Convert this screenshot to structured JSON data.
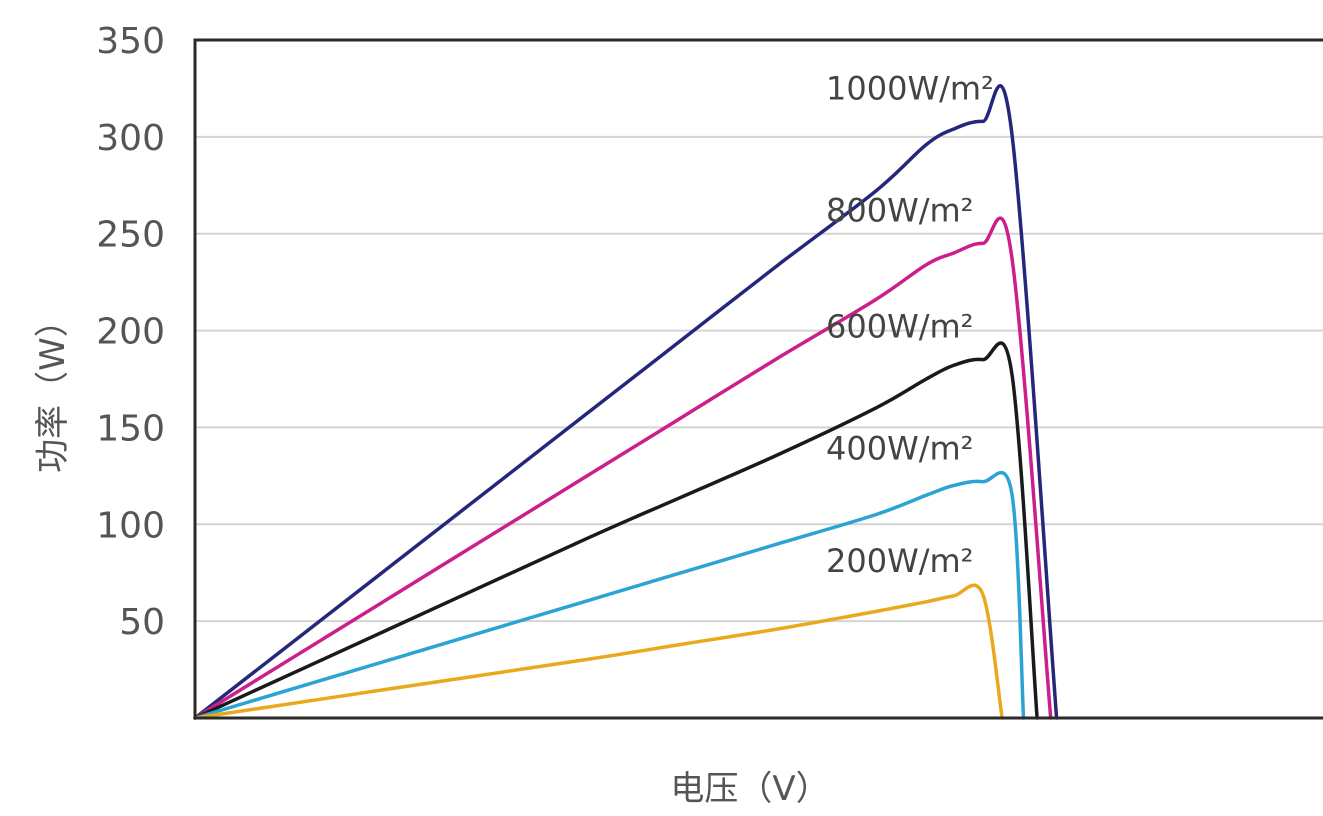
{
  "chart_data": {
    "type": "line",
    "title": "",
    "xlabel": "电压（V）",
    "ylabel": "功率（W）",
    "ylim": [
      0,
      350
    ],
    "y_ticks": [
      "50",
      "100",
      "150",
      "200",
      "250",
      "300",
      "350"
    ],
    "grid": "horizontal",
    "series": [
      {
        "name": "1000W/m²",
        "color": "#24277a",
        "x": [
          0,
          10,
          20,
          25,
          30,
          35,
          37.6,
          39,
          40.5,
          42,
          44.3
        ],
        "values": [
          0,
          78,
          156,
          195,
          234,
          272,
          296,
          304,
          308,
          302,
          0
        ]
      },
      {
        "name": "800W/m²",
        "color": "#cc1e8c",
        "x": [
          0,
          10,
          20,
          25,
          30,
          35,
          37.6,
          39,
          40.5,
          42,
          44
        ],
        "values": [
          0,
          62,
          124,
          155,
          186,
          216,
          234,
          240,
          245,
          238,
          0
        ]
      },
      {
        "name": "600W/m²",
        "color": "#1a1a1a",
        "x": [
          0,
          10,
          20,
          25,
          30,
          35,
          37.6,
          39,
          40.5,
          42,
          43.3
        ],
        "values": [
          0,
          46,
          92,
          114,
          136,
          160,
          175,
          182,
          185,
          178,
          0
        ]
      },
      {
        "name": "400W/m²",
        "color": "#2ba4d4",
        "x": [
          0,
          10,
          20,
          25,
          30,
          35,
          37.6,
          39,
          40.5,
          42,
          42.6
        ],
        "values": [
          0,
          30,
          60,
          75,
          90,
          105,
          115,
          120,
          122,
          116,
          0
        ]
      },
      {
        "name": "200W/m²",
        "color": "#e8a91c",
        "x": [
          0,
          10,
          20,
          25,
          30,
          35,
          37.6,
          39,
          40.5,
          41.5
        ],
        "values": [
          0,
          15,
          30,
          38,
          46,
          55,
          60,
          63,
          64,
          0
        ]
      }
    ]
  }
}
